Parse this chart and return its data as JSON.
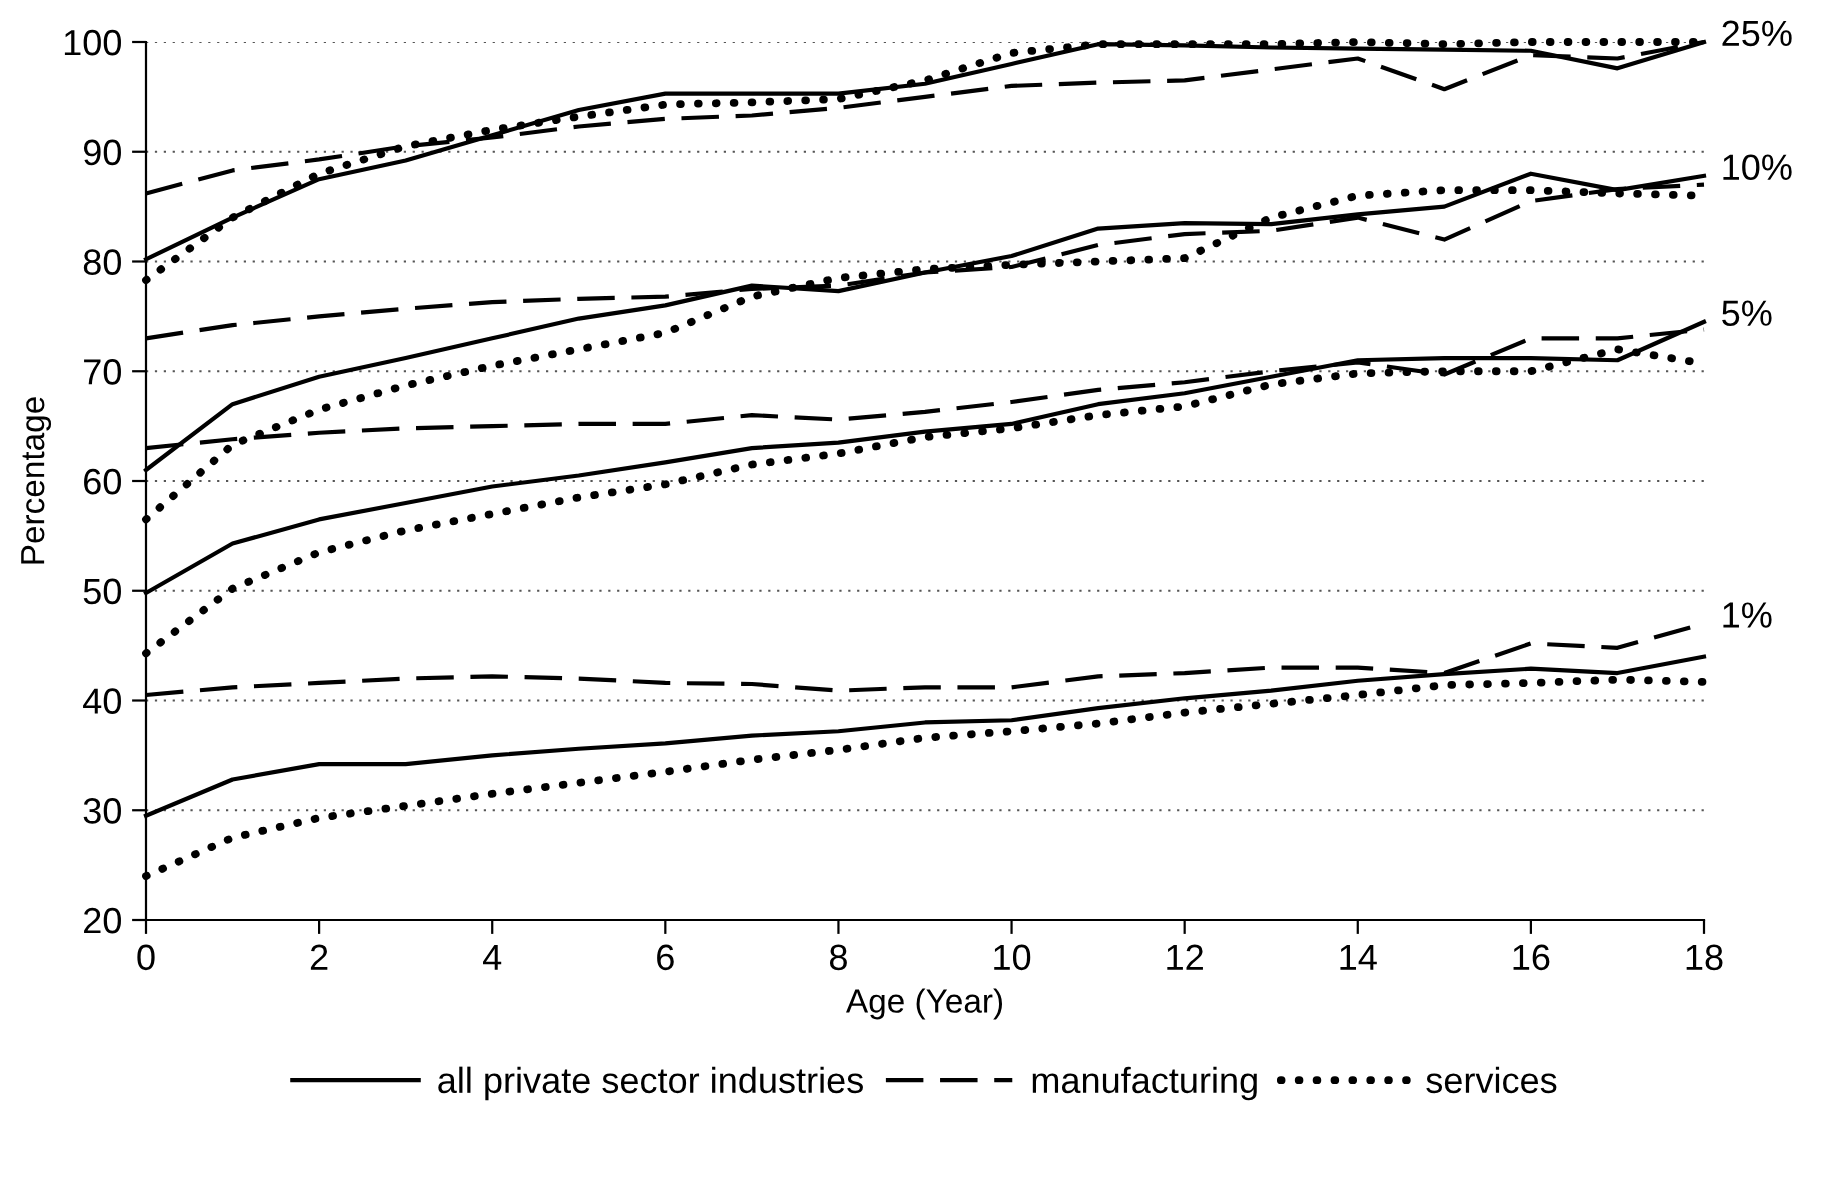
{
  "chart_data": {
    "type": "line",
    "xlabel": "Age (Year)",
    "ylabel": "Percentage",
    "x": [
      0,
      1,
      2,
      3,
      4,
      5,
      6,
      7,
      8,
      9,
      10,
      11,
      12,
      13,
      14,
      15,
      16,
      17,
      18
    ],
    "xlim": [
      0,
      18
    ],
    "xticks": [
      0,
      2,
      4,
      6,
      8,
      10,
      12,
      14,
      16,
      18
    ],
    "ylim": [
      20,
      100
    ],
    "yticks": [
      20,
      30,
      40,
      50,
      60,
      70,
      80,
      90,
      100
    ],
    "grid": "y",
    "legend": "bottom",
    "marker": "none",
    "series": [
      {
        "name": "all private sector industries",
        "color": "#000000",
        "line_style": "solid",
        "values": [
          80.2,
          84,
          87.5,
          89.2,
          91.5,
          93.8,
          95.3,
          95.3,
          95.3,
          96.2,
          98,
          99.8,
          99.7,
          99.5,
          99.4,
          99.3,
          99.2,
          97.6,
          100
        ]
      },
      {
        "name": "manufacturing",
        "color": "#000000",
        "line_style": "dashed",
        "values": [
          86.2,
          88.3,
          89.3,
          90.5,
          91.3,
          92.3,
          93,
          93.3,
          94,
          95,
          96,
          96.3,
          96.5,
          97.5,
          98.5,
          95.7,
          98.8,
          98.5,
          100
        ]
      },
      {
        "name": "services",
        "color": "#000000",
        "line_style": "dotted",
        "values": [
          78.3,
          84,
          88,
          90.5,
          92,
          93.2,
          94.3,
          94.5,
          94.8,
          96.5,
          99,
          99.8,
          99.8,
          99.8,
          100,
          99.8,
          100,
          100,
          100
        ]
      },
      {
        "color": "#000000",
        "line_style": "solid",
        "values": [
          61,
          67,
          69.5,
          71.2,
          73,
          74.8,
          76,
          77.8,
          77.3,
          79,
          80.5,
          83,
          83.5,
          83.4,
          84.3,
          85,
          88,
          86.5,
          87.8
        ]
      },
      {
        "color": "#000000",
        "line_style": "dashed",
        "values": [
          73,
          74.2,
          75,
          75.7,
          76.3,
          76.6,
          76.8,
          77.5,
          77.8,
          79,
          79.5,
          81.5,
          82.5,
          82.8,
          84,
          82,
          85.5,
          86.6,
          87
        ]
      },
      {
        "color": "#000000",
        "line_style": "dotted",
        "values": [
          56.5,
          63.3,
          66.5,
          68.7,
          70.5,
          72,
          73.5,
          76.8,
          78.5,
          79.3,
          79.7,
          80,
          80.3,
          84,
          86,
          86.5,
          86.5,
          86.2,
          86
        ]
      },
      {
        "color": "#000000",
        "line_style": "solid",
        "values": [
          49.8,
          54.3,
          56.5,
          58,
          59.5,
          60.5,
          61.7,
          63,
          63.5,
          64.5,
          65.2,
          67,
          68,
          69.5,
          71,
          71.2,
          71.2,
          71,
          74.5
        ]
      },
      {
        "color": "#000000",
        "line_style": "dashed",
        "values": [
          63,
          63.8,
          64.4,
          64.8,
          65,
          65.2,
          65.2,
          66,
          65.6,
          66.3,
          67.2,
          68.3,
          69,
          70,
          70.8,
          69.7,
          73,
          73,
          73.8
        ]
      },
      {
        "color": "#000000",
        "line_style": "dotted",
        "values": [
          44.3,
          50.2,
          53.5,
          55.5,
          57,
          58.5,
          59.7,
          61.5,
          62.5,
          64,
          64.8,
          66,
          66.8,
          68.8,
          69.8,
          70,
          70,
          72,
          70.7
        ]
      },
      {
        "color": "#000000",
        "line_style": "solid",
        "values": [
          29.5,
          32.8,
          34.2,
          34.2,
          35,
          35.6,
          36.1,
          36.8,
          37.2,
          38,
          38.2,
          39.3,
          40.2,
          40.9,
          41.8,
          42.4,
          42.9,
          42.5,
          44
        ]
      },
      {
        "color": "#000000",
        "line_style": "dashed",
        "values": [
          40.5,
          41.2,
          41.6,
          42,
          42.2,
          42,
          41.6,
          41.5,
          40.9,
          41.2,
          41.2,
          42.2,
          42.5,
          43,
          43,
          42.5,
          45.2,
          44.8,
          47
        ]
      },
      {
        "color": "#000000",
        "line_style": "dotted",
        "values": [
          24,
          27.5,
          29.3,
          30.4,
          31.5,
          32.5,
          33.5,
          34.6,
          35.5,
          36.6,
          37.2,
          37.9,
          38.9,
          39.7,
          40.5,
          41.4,
          41.6,
          41.9,
          41.7
        ]
      }
    ],
    "annotations": [
      "25%",
      "10%",
      "5%",
      "1%"
    ]
  }
}
